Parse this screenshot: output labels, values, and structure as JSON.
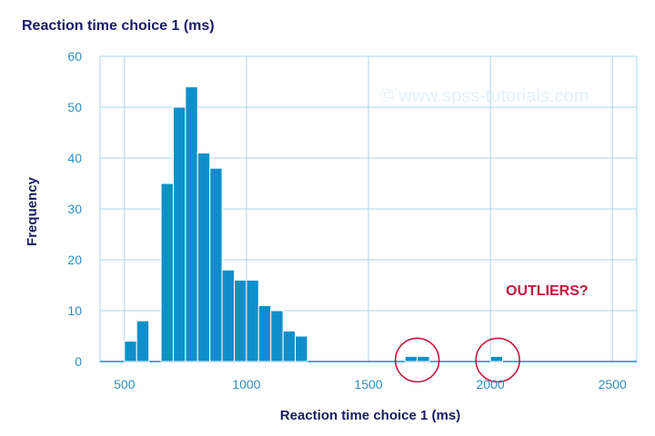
{
  "title": "Reaction time choice 1 (ms)",
  "watermark": "© www.spss-tutorials.com",
  "annotation": "OUTLIERS?",
  "colors": {
    "bar": "#0e8fcc",
    "grid": "#a8d4e8",
    "tick_text": "#2f8fc0",
    "title_text": "#1a1a66",
    "outlier_circle": "#c4173d"
  },
  "chart_data": {
    "type": "bar",
    "subtype": "histogram",
    "title": "Reaction time choice 1 (ms)",
    "xlabel": "Reaction time choice 1 (ms)",
    "ylabel": "Frequency",
    "xlim": [
      400,
      2600
    ],
    "ylim": [
      0,
      60
    ],
    "bin_width": 50,
    "grid": true,
    "x_ticks": [
      500,
      1000,
      1500,
      2000,
      2500
    ],
    "y_ticks": [
      0,
      10,
      20,
      30,
      40,
      50,
      60
    ],
    "bins": [
      {
        "start": 500,
        "count": 4
      },
      {
        "start": 550,
        "count": 8
      },
      {
        "start": 600,
        "count": 0
      },
      {
        "start": 650,
        "count": 35
      },
      {
        "start": 700,
        "count": 50
      },
      {
        "start": 750,
        "count": 54
      },
      {
        "start": 800,
        "count": 41
      },
      {
        "start": 850,
        "count": 38
      },
      {
        "start": 900,
        "count": 18
      },
      {
        "start": 950,
        "count": 16
      },
      {
        "start": 1000,
        "count": 16
      },
      {
        "start": 1050,
        "count": 11
      },
      {
        "start": 1100,
        "count": 10
      },
      {
        "start": 1150,
        "count": 6
      },
      {
        "start": 1200,
        "count": 5
      },
      {
        "start": 1650,
        "count": 1
      },
      {
        "start": 1700,
        "count": 1
      },
      {
        "start": 2000,
        "count": 1
      }
    ],
    "outlier_markers": [
      {
        "x": 1700,
        "y": 1
      },
      {
        "x": 2030,
        "y": 1
      }
    ],
    "annotations": [
      "OUTLIERS?"
    ]
  }
}
